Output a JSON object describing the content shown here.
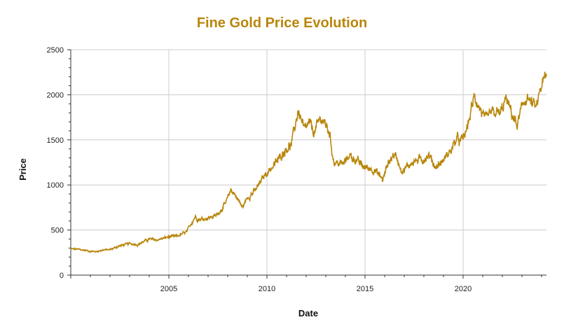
{
  "colors": {
    "series": "#B8860B",
    "title": "#B8860B",
    "grid": "#cccccc",
    "axis": "#333333"
  },
  "chart_data": {
    "type": "line",
    "title": "Fine Gold Price Evolution",
    "xlabel": "Date",
    "ylabel": "Price",
    "xlim": [
      "2000-01-01",
      "2024-04-01"
    ],
    "ylim": [
      0,
      2500
    ],
    "x_tick_labels": [
      "2005",
      "2010",
      "2015",
      "2020"
    ],
    "y_tick_labels": [
      "0",
      "500",
      "1000",
      "1500",
      "2000",
      "2500"
    ],
    "grid": true,
    "legend": "none",
    "series": [
      {
        "values_note_removed": true,
        "x": [
          "2000-01",
          "2000-06",
          "2001-01",
          "2001-04",
          "2001-09",
          "2002-01",
          "2002-06",
          "2003-01",
          "2003-06",
          "2004-01",
          "2004-06",
          "2005-01",
          "2005-06",
          "2005-12",
          "2006-05",
          "2006-07",
          "2006-12",
          "2007-06",
          "2007-12",
          "2008-03",
          "2008-06",
          "2008-10",
          "2009-01",
          "2009-06",
          "2009-12",
          "2010-06",
          "2010-12",
          "2011-04",
          "2011-08",
          "2011-09",
          "2011-12",
          "2012-03",
          "2012-06",
          "2012-10",
          "2012-12",
          "2013-03",
          "2013-06",
          "2013-12",
          "2014-03",
          "2014-06",
          "2014-12",
          "2015-03",
          "2015-06",
          "2015-12",
          "2016-03",
          "2016-07",
          "2016-12",
          "2017-06",
          "2017-12",
          "2018-04",
          "2018-08",
          "2018-12",
          "2019-06",
          "2019-09",
          "2019-12",
          "2020-03",
          "2020-08",
          "2020-11",
          "2021-03",
          "2021-06",
          "2021-12",
          "2022-03",
          "2022-06",
          "2022-10",
          "2022-12",
          "2023-04",
          "2023-06",
          "2023-10",
          "2023-12",
          "2024-03"
        ],
        "y": [
          290,
          285,
          265,
          260,
          280,
          280,
          320,
          350,
          340,
          400,
          390,
          425,
          430,
          480,
          650,
          620,
          630,
          660,
          800,
          950,
          880,
          750,
          860,
          940,
          1120,
          1230,
          1390,
          1450,
          1820,
          1780,
          1600,
          1680,
          1580,
          1750,
          1690,
          1600,
          1250,
          1230,
          1330,
          1300,
          1200,
          1190,
          1180,
          1060,
          1240,
          1350,
          1150,
          1260,
          1280,
          1330,
          1200,
          1250,
          1400,
          1510,
          1480,
          1600,
          1980,
          1860,
          1700,
          1800,
          1790,
          1950,
          1830,
          1650,
          1800,
          1990,
          1920,
          1850,
          2050,
          2180
        ]
      }
    ]
  }
}
